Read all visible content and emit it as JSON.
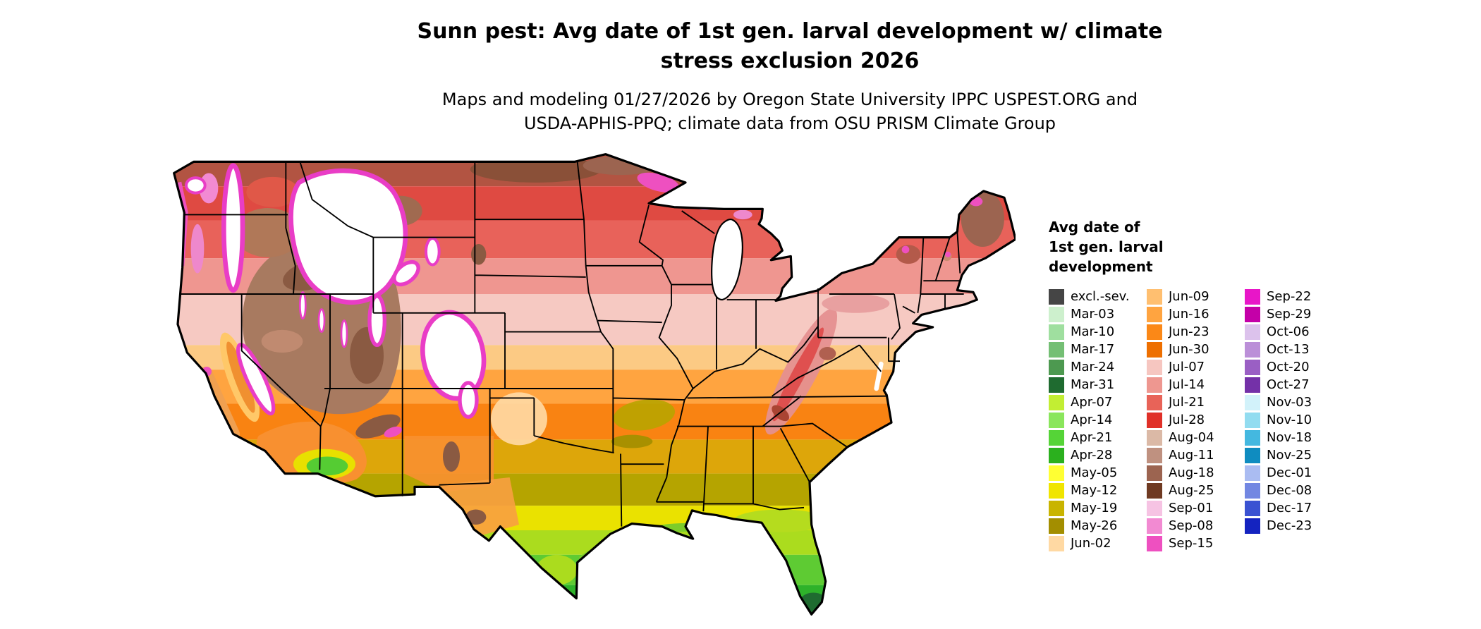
{
  "header": {
    "title_lines": [
      "Sunn pest: Avg date of 1st gen. larval development w/ climate",
      "stress exclusion 2026"
    ],
    "subtitle_lines": [
      "Maps and modeling 01/27/2026 by Oregon State University IPPC USPEST.ORG and",
      "USDA-APHIS-PPQ; climate data from OSU PRISM Climate Group"
    ]
  },
  "legend": {
    "title_lines": [
      "Avg date of",
      "1st gen. larval",
      "development"
    ],
    "columns": [
      {
        "entries": [
          {
            "label": "excl.-sev.",
            "color": "#454545"
          },
          {
            "label": "Mar-03",
            "color": "#cdf0cd"
          },
          {
            "label": "Mar-10",
            "color": "#9fdf9f"
          },
          {
            "label": "Mar-17",
            "color": "#74bf74"
          },
          {
            "label": "Mar-24",
            "color": "#4d9950"
          },
          {
            "label": "Mar-31",
            "color": "#1f6b30"
          },
          {
            "label": "Apr-07",
            "color": "#c2ee33"
          },
          {
            "label": "Apr-14",
            "color": "#8ae65c"
          },
          {
            "label": "Apr-21",
            "color": "#55d437"
          },
          {
            "label": "Apr-28",
            "color": "#2bb01e"
          },
          {
            "label": "May-05",
            "color": "#ffff33"
          },
          {
            "label": "May-12",
            "color": "#f0e500"
          },
          {
            "label": "May-19",
            "color": "#c9b400"
          },
          {
            "label": "May-26",
            "color": "#a38e00"
          },
          {
            "label": "Jun-02",
            "color": "#ffd9a3"
          }
        ]
      },
      {
        "entries": [
          {
            "label": "Jun-09",
            "color": "#ffbf70"
          },
          {
            "label": "Jun-16",
            "color": "#ffa440"
          },
          {
            "label": "Jun-23",
            "color": "#fb8817"
          },
          {
            "label": "Jun-30",
            "color": "#ee6f00"
          },
          {
            "label": "Jul-07",
            "color": "#f6c6c0"
          },
          {
            "label": "Jul-14",
            "color": "#ee9790"
          },
          {
            "label": "Jul-21",
            "color": "#e86358"
          },
          {
            "label": "Jul-28",
            "color": "#e03028"
          },
          {
            "label": "Aug-04",
            "color": "#dbb9a6"
          },
          {
            "label": "Aug-11",
            "color": "#bf9180"
          },
          {
            "label": "Aug-18",
            "color": "#9c6450"
          },
          {
            "label": "Aug-25",
            "color": "#6f3a22"
          },
          {
            "label": "Sep-01",
            "color": "#f6c3e3"
          },
          {
            "label": "Sep-08",
            "color": "#f28ad2"
          },
          {
            "label": "Sep-15",
            "color": "#ee50c0"
          }
        ]
      },
      {
        "entries": [
          {
            "label": "Sep-22",
            "color": "#e816c8"
          },
          {
            "label": "Sep-29",
            "color": "#c400a8"
          },
          {
            "label": "Oct-06",
            "color": "#dcc2ec"
          },
          {
            "label": "Oct-13",
            "color": "#bb8fd8"
          },
          {
            "label": "Oct-20",
            "color": "#9a5fc4"
          },
          {
            "label": "Oct-27",
            "color": "#7431a8"
          },
          {
            "label": "Nov-03",
            "color": "#d2f2fa"
          },
          {
            "label": "Nov-10",
            "color": "#92dcf0"
          },
          {
            "label": "Nov-18",
            "color": "#44b8e0"
          },
          {
            "label": "Nov-25",
            "color": "#0f8cc0"
          },
          {
            "label": "Dec-01",
            "color": "#aabcf2"
          },
          {
            "label": "Dec-08",
            "color": "#7287e2"
          },
          {
            "label": "Dec-17",
            "color": "#3a52d2"
          },
          {
            "label": "Dec-23",
            "color": "#1423c0"
          }
        ]
      }
    ]
  }
}
